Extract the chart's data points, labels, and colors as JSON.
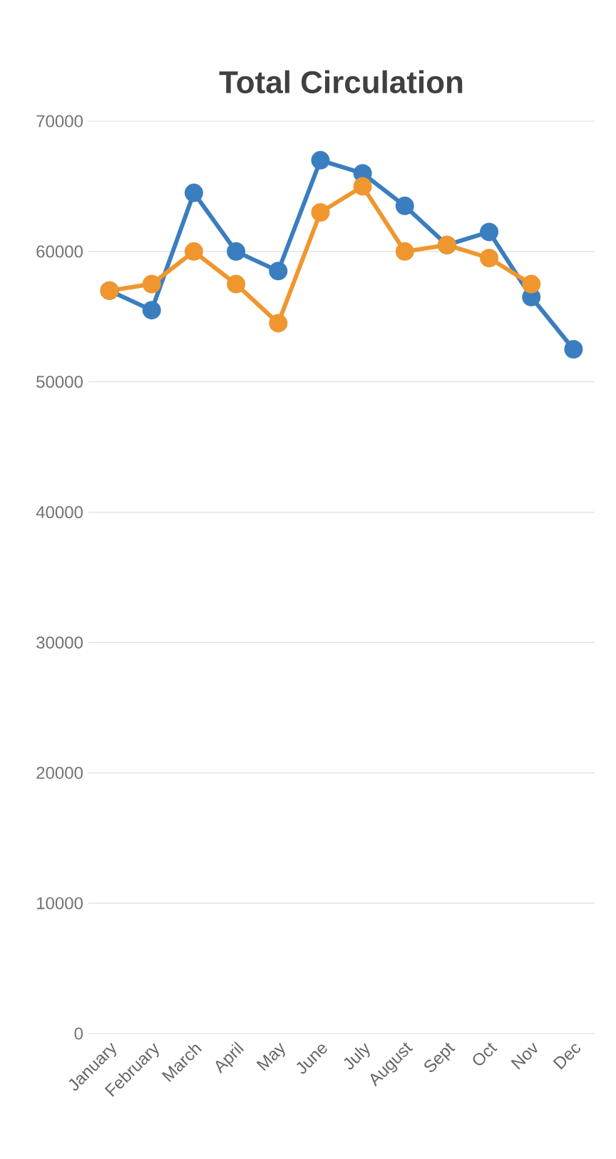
{
  "chart_data": {
    "type": "line",
    "title": "Total Circulation",
    "categories": [
      "January",
      "February",
      "March",
      "April",
      "May",
      "June",
      "July",
      "August",
      "Sept",
      "Oct",
      "Nov",
      "Dec"
    ],
    "series": [
      {
        "color": "#3a7ebf",
        "values": [
          57000,
          55500,
          64500,
          60000,
          58500,
          67000,
          66000,
          63500,
          60500,
          61500,
          56500,
          52500
        ]
      },
      {
        "color": "#f0962f",
        "values": [
          57000,
          57500,
          60000,
          57500,
          54500,
          63000,
          65000,
          60000,
          60500,
          59500,
          57500,
          null
        ]
      }
    ],
    "ylim": [
      0,
      70000
    ],
    "yticks": [
      0,
      10000,
      20000,
      30000,
      40000,
      50000,
      60000,
      70000
    ],
    "grid": "y",
    "marker": "circle"
  }
}
